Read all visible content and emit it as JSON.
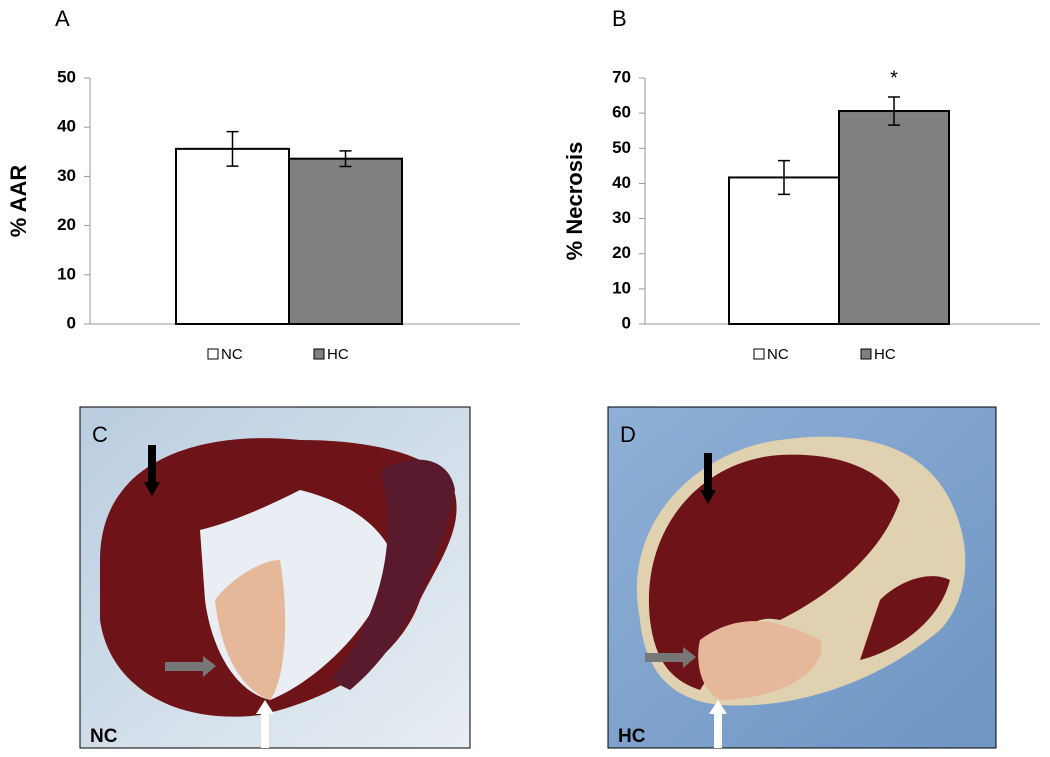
{
  "chart_data": [
    {
      "type": "bar",
      "panel_label": "A",
      "y_label": "% AAR",
      "categories": [
        null
      ],
      "series": [
        {
          "name": "NC",
          "color": "#ffffff",
          "values": [
            35.6
          ],
          "errors": [
            3.5
          ]
        },
        {
          "name": "HC",
          "color": "#808080",
          "values": [
            33.6
          ],
          "errors": [
            1.6
          ]
        }
      ],
      "ylim": [
        0,
        50
      ],
      "yticks": [
        0,
        10,
        20,
        30,
        40,
        50
      ],
      "legend": "bottom"
    },
    {
      "type": "bar",
      "panel_label": "B",
      "y_label": "% Necrosis",
      "categories": [
        null
      ],
      "series": [
        {
          "name": "NC",
          "color": "#ffffff",
          "values": [
            41.7
          ],
          "errors": [
            4.8
          ]
        },
        {
          "name": "HC",
          "color": "#808080",
          "values": [
            60.6
          ],
          "errors": [
            4.0
          ]
        }
      ],
      "ylim": [
        0,
        70
      ],
      "yticks": [
        0,
        10,
        20,
        30,
        40,
        50,
        60,
        70
      ],
      "legend": "bottom",
      "annotations": [
        {
          "text": "*",
          "series": 1
        }
      ]
    }
  ],
  "panels": [
    {
      "label": "C",
      "caption": "NC"
    },
    {
      "label": "D",
      "caption": "HC"
    }
  ]
}
